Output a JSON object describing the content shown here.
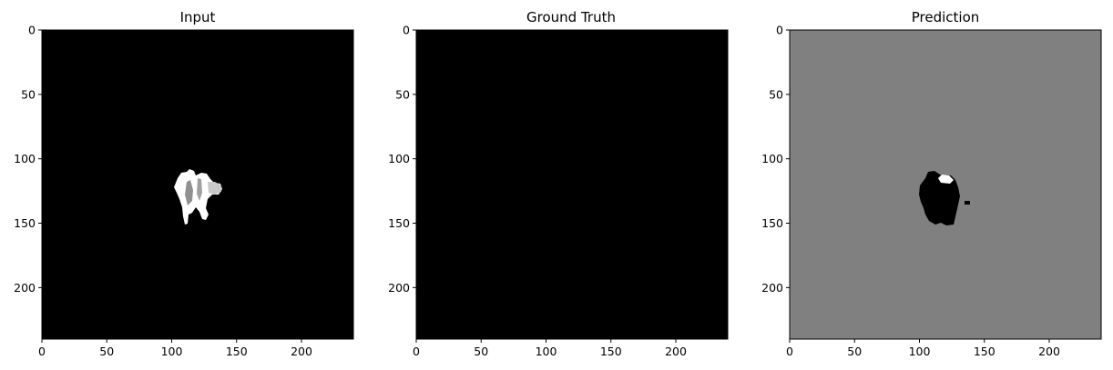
{
  "figure": {
    "background": "#ffffff",
    "tick_color": "#000000"
  },
  "panels": [
    {
      "id": "input",
      "title": "Input",
      "background": "#000000",
      "image_content": "small bright white segmentation blob near center, partly light gray"
    },
    {
      "id": "ground-truth",
      "title": "Ground Truth",
      "background": "#000000",
      "image_content": "all black"
    },
    {
      "id": "prediction",
      "title": "Prediction",
      "background": "#808080",
      "image_content": "black blob with small white cap near center on gray background"
    }
  ],
  "axes": {
    "xticks": [
      0,
      50,
      100,
      150,
      200
    ],
    "yticks": [
      0,
      50,
      100,
      150,
      200
    ],
    "xticklabels": [
      "0",
      "50",
      "100",
      "150",
      "200"
    ],
    "yticklabels": [
      "0",
      "50",
      "100",
      "150",
      "200"
    ],
    "extent": [
      0,
      240
    ]
  }
}
